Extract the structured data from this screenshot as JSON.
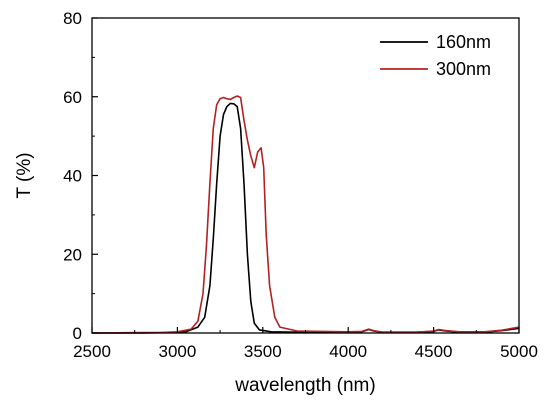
{
  "chart_data": {
    "type": "line",
    "xlabel": "wavelength (nm)",
    "ylabel": "T (%)",
    "xlim": [
      2500,
      5000
    ],
    "ylim": [
      0,
      80
    ],
    "xticks": [
      2500,
      3000,
      3500,
      4000,
      4500,
      5000
    ],
    "yticks": [
      0,
      20,
      40,
      60,
      80
    ],
    "grid": false,
    "legend_position": "top-right",
    "series": [
      {
        "name": "160nm",
        "color": "#000000",
        "x": [
          2500,
          2800,
          2950,
          3050,
          3120,
          3160,
          3190,
          3210,
          3230,
          3250,
          3270,
          3290,
          3310,
          3330,
          3350,
          3370,
          3390,
          3410,
          3430,
          3450,
          3480,
          3550,
          3700,
          4000,
          4080,
          4120,
          4150,
          4200,
          4400,
          4500,
          4530,
          4570,
          4650,
          4800,
          4900,
          5000
        ],
        "y": [
          0,
          0,
          0.1,
          0.3,
          1.5,
          4,
          12,
          24,
          38,
          50,
          55.5,
          57.5,
          58.3,
          58.2,
          57.5,
          52,
          38,
          20,
          8,
          2.5,
          0.8,
          0.3,
          0.2,
          0.2,
          0.3,
          0.9,
          0.5,
          0.2,
          0.2,
          0.4,
          0.8,
          0.5,
          0.2,
          0.2,
          0.6,
          1.2
        ]
      },
      {
        "name": "300nm",
        "color": "#b22222",
        "x": [
          2500,
          2800,
          2900,
          3000,
          3080,
          3120,
          3150,
          3170,
          3190,
          3210,
          3230,
          3250,
          3270,
          3290,
          3310,
          3330,
          3350,
          3370,
          3390,
          3410,
          3430,
          3450,
          3470,
          3490,
          3505,
          3520,
          3540,
          3570,
          3600,
          3700,
          4000,
          4080,
          4120,
          4150,
          4200,
          4400,
          4500,
          4530,
          4570,
          4650,
          4800,
          4900,
          5000
        ],
        "y": [
          0,
          0.1,
          0.1,
          0.3,
          1,
          3,
          10,
          22,
          38,
          52,
          58,
          59.5,
          59.8,
          59.5,
          59.3,
          59.8,
          60.2,
          59.8,
          54,
          49,
          45,
          42,
          46,
          47,
          42,
          25,
          12,
          4,
          1.5,
          0.5,
          0.3,
          0.4,
          1,
          0.6,
          0.2,
          0.2,
          0.5,
          0.9,
          0.6,
          0.3,
          0.3,
          0.7,
          1.5
        ]
      }
    ]
  }
}
